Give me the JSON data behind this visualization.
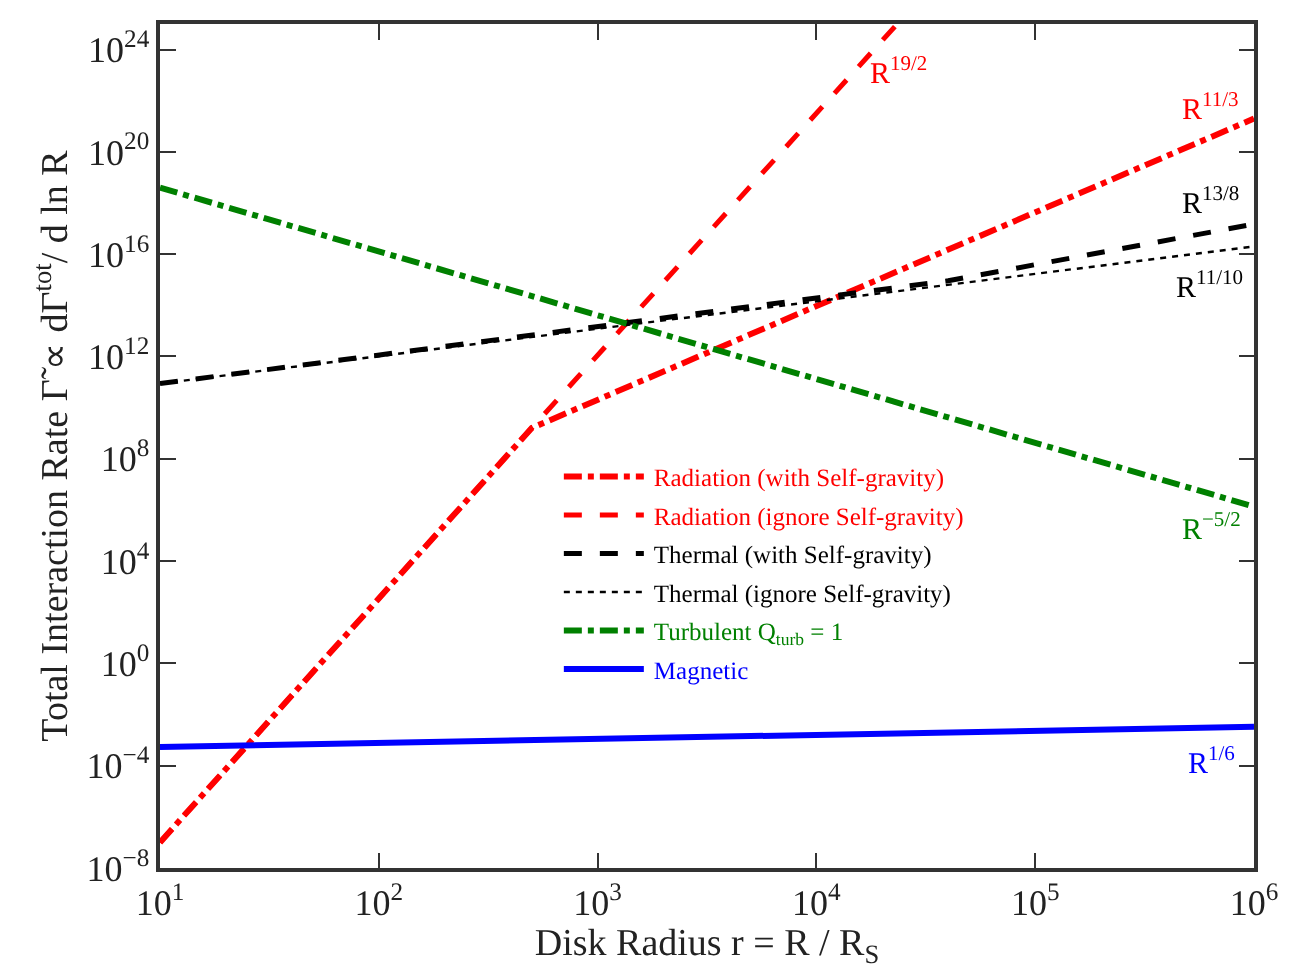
{
  "chart_data": {
    "type": "line",
    "xlabel": "Disk Radius r = R / R$_{S}$",
    "ylabel": "Total Interaction Rate Γ̃ ∝ dΓ$^{tot}$/ d ln R",
    "log": "xy",
    "legend": "center",
    "marker": "none",
    "xlim": [
      10,
      1000000
    ],
    "xticks": [
      {
        "value": 10,
        "label": "10$^{1}$"
      },
      {
        "value": 100,
        "label": "10$^{2}$"
      },
      {
        "value": 1000,
        "label": "10$^{3}$"
      },
      {
        "value": 10000,
        "label": "10$^{4}$"
      },
      {
        "value": 100000,
        "label": "10$^{5}$"
      },
      {
        "value": 1000000,
        "label": "10$^{6}$"
      }
    ],
    "ylim": [
      1e-08,
      1e+25
    ],
    "yticks": [
      {
        "value": 1e-08,
        "label": "10$^{−8}$"
      },
      {
        "value": 0.0001,
        "label": "10$^{−4}$"
      },
      {
        "value": 1,
        "label": "10$^{0}$"
      },
      {
        "value": 10000.0,
        "label": "10$^{4}$"
      },
      {
        "value": 100000000.0,
        "label": "10$^{8}$"
      },
      {
        "value": 1000000000000.0,
        "label": "10$^{12}$"
      },
      {
        "value": 1e+16,
        "label": "10$^{16}$"
      },
      {
        "value": 1e+20,
        "label": "10$^{20}$"
      },
      {
        "value": 1e+24,
        "label": "10$^{24}$"
      }
    ],
    "series": [
      {
        "name": "Radiation (with Self-gravity)",
        "color": "#ff0000",
        "line_style": "dashdot",
        "x": [
          10,
          500,
          1000000
        ],
        "values": [
          1e-07,
          1600000000.0,
          2e+21
        ]
      },
      {
        "name": "Radiation (ignore Self-gravity)",
        "color": "#ff0000",
        "line_style": "dashed",
        "x": [
          10,
          500,
          23400
        ],
        "values": [
          1e-07,
          1600000000.0,
          1e+25
        ]
      },
      {
        "name": "Thermal (with Self-gravity)",
        "color": "#000000",
        "line_style": "dashed",
        "x": [
          10,
          40000,
          1000000
        ],
        "values": [
          87000000000.0,
          910000000000000.0,
          1.5e+17
        ]
      },
      {
        "name": "Thermal (ignore Self-gravity)",
        "color": "#000000",
        "line_style": "dotted",
        "x": [
          10,
          1000000
        ],
        "values": [
          87000000000.0,
          2e+16
        ]
      },
      {
        "name": "Turbulent Q$_{turb}$ = 1",
        "color": "#008000",
        "line_style": "dashdot",
        "x": [
          10,
          1000000
        ],
        "values": [
          4e+18,
          1350000.0
        ]
      },
      {
        "name": "Magnetic",
        "color": "#0000ff",
        "line_style": "solid",
        "x": [
          10,
          1000000
        ],
        "values": [
          0.00054,
          0.0033
        ]
      }
    ],
    "annotations": [
      "R$^{11/3}$",
      "R$^{19/2}$",
      "R$^{13/8}$",
      "R$^{11/10}$",
      "R$^{−5/2}$",
      "R$^{1/6}$"
    ]
  }
}
